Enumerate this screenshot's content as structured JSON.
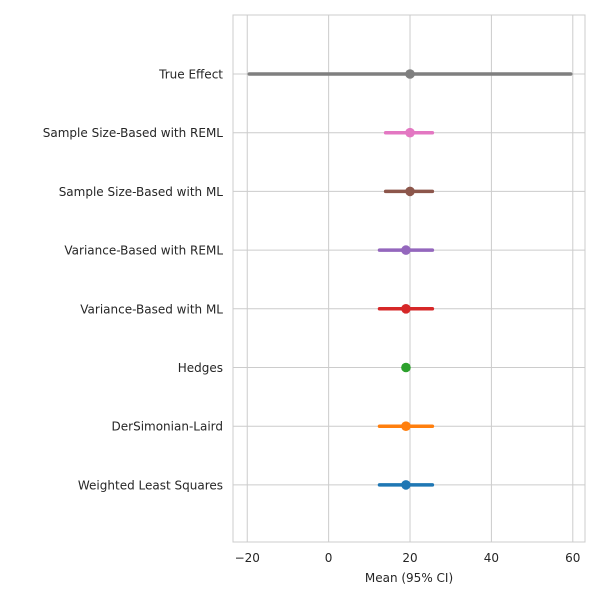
{
  "chart_data": {
    "type": "scatter",
    "subtype": "forest-plot",
    "title": "",
    "xlabel": "Mean (95% CI)",
    "ylabel": "",
    "xlim": [
      -23.5,
      63
    ],
    "xticks": [
      -20,
      0,
      20,
      40,
      60
    ],
    "xtick_labels": [
      "−20",
      "0",
      "20",
      "40",
      "60"
    ],
    "grid": true,
    "legend": "none",
    "series": [
      {
        "label": "Weighted Least Squares",
        "mean": 19,
        "lower": 12.5,
        "upper": 25.5,
        "color": "#1f77b4"
      },
      {
        "label": "DerSimonian-Laird",
        "mean": 19,
        "lower": 12.5,
        "upper": 25.5,
        "color": "#ff7f0e"
      },
      {
        "label": "Hedges",
        "mean": 19,
        "lower": 19,
        "upper": 19,
        "color": "#2ca02c"
      },
      {
        "label": "Variance-Based with ML",
        "mean": 19,
        "lower": 12.5,
        "upper": 25.5,
        "color": "#d62728"
      },
      {
        "label": "Variance-Based with REML",
        "mean": 19,
        "lower": 12.5,
        "upper": 25.5,
        "color": "#9467bd"
      },
      {
        "label": "Sample Size-Based with ML",
        "mean": 20,
        "lower": 14,
        "upper": 25.5,
        "color": "#8c564b"
      },
      {
        "label": "Sample Size-Based with REML",
        "mean": 20,
        "lower": 14,
        "upper": 25.5,
        "color": "#e377c2"
      },
      {
        "label": "True Effect",
        "mean": 20,
        "lower": -19.5,
        "upper": 59.5,
        "color": "#7f7f7f"
      }
    ]
  }
}
